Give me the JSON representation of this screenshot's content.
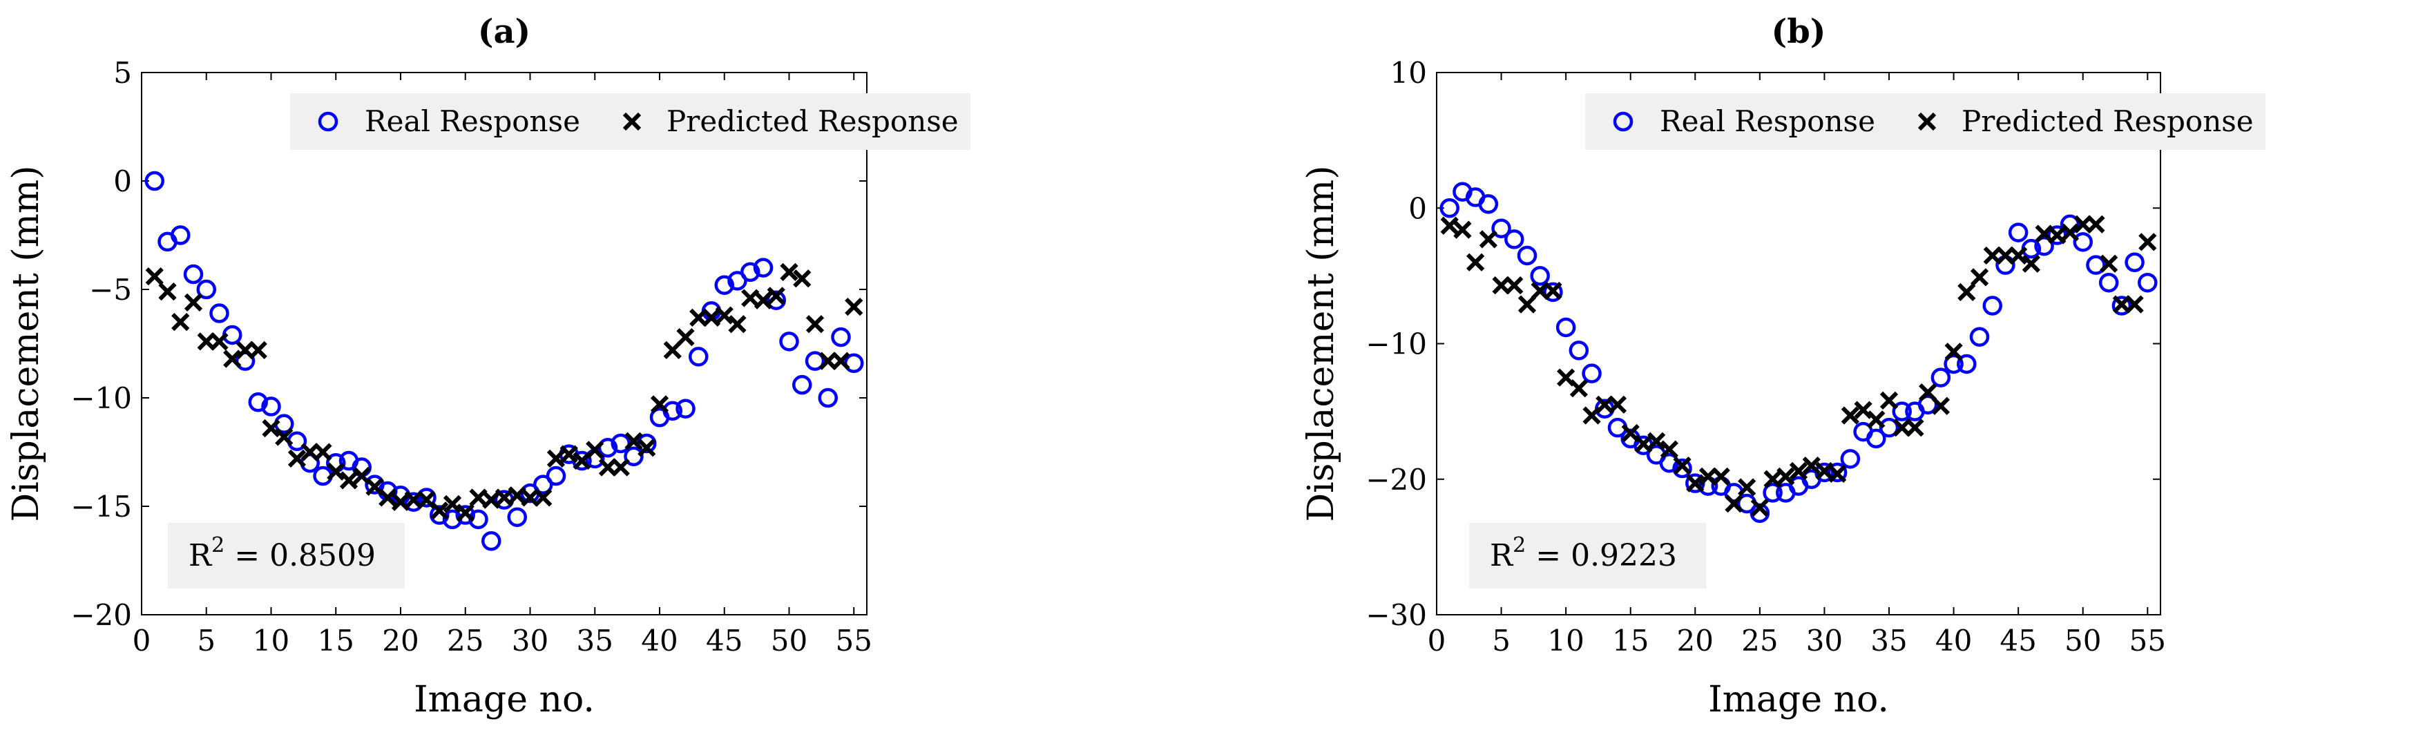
{
  "chart_data": [
    {
      "type": "scatter",
      "title": "(a)",
      "xlabel": "Image no.",
      "ylabel": "Displacement (mm)",
      "xlim": [
        0,
        56
      ],
      "ylim": [
        -20,
        5
      ],
      "xticks": [
        0,
        5,
        10,
        15,
        20,
        25,
        30,
        35,
        40,
        45,
        50,
        55
      ],
      "yticks": [
        5,
        0,
        -5,
        -10,
        -15,
        -20
      ],
      "grid": false,
      "legend": "top-center",
      "annotation": {
        "label": "R",
        "sup": "2",
        "value": " = 0.8509"
      },
      "series": [
        {
          "name": "Real Response",
          "marker": "circle",
          "color": "#0000ff",
          "x": [
            1,
            2,
            3,
            4,
            5,
            6,
            7,
            8,
            9,
            10,
            11,
            12,
            13,
            14,
            15,
            16,
            17,
            18,
            19,
            20,
            21,
            22,
            23,
            24,
            25,
            26,
            27,
            28,
            29,
            30,
            31,
            32,
            33,
            34,
            35,
            36,
            37,
            38,
            39,
            40,
            41,
            42,
            43,
            44,
            45,
            46,
            47,
            48,
            49,
            50,
            51,
            52,
            53,
            54,
            55
          ],
          "values": [
            0,
            -2.8,
            -2.5,
            -4.3,
            -5.0,
            -6.1,
            -7.1,
            -8.3,
            -10.2,
            -10.4,
            -11.2,
            -12.0,
            -13.0,
            -13.6,
            -13.0,
            -12.9,
            -13.2,
            -14.0,
            -14.3,
            -14.5,
            -14.8,
            -14.6,
            -15.4,
            -15.6,
            -15.4,
            -15.6,
            -16.6,
            -14.7,
            -15.5,
            -14.4,
            -14.0,
            -13.6,
            -12.6,
            -12.9,
            -12.8,
            -12.3,
            -12.1,
            -12.7,
            -12.1,
            -10.9,
            -10.6,
            -10.5,
            -8.1,
            -6.0,
            -4.8,
            -4.6,
            -4.2,
            -4.0,
            -5.5,
            -7.4,
            -9.4,
            -8.3,
            -10.0,
            -7.2,
            -8.4
          ]
        },
        {
          "name": "Predicted Response",
          "marker": "x",
          "color": "#000000",
          "x": [
            1,
            2,
            3,
            4,
            5,
            6,
            7,
            8,
            9,
            10,
            11,
            12,
            13,
            14,
            15,
            16,
            17,
            18,
            19,
            20,
            21,
            22,
            23,
            24,
            25,
            26,
            27,
            28,
            29,
            30,
            31,
            32,
            33,
            34,
            35,
            36,
            37,
            38,
            39,
            40,
            41,
            42,
            43,
            44,
            45,
            46,
            47,
            48,
            49,
            50,
            51,
            52,
            53,
            54,
            55
          ],
          "values": [
            -4.4,
            -5.1,
            -6.5,
            -5.6,
            -7.4,
            -7.4,
            -8.2,
            -7.8,
            -7.8,
            -11.4,
            -11.8,
            -12.8,
            -12.5,
            -12.5,
            -13.4,
            -13.8,
            -13.6,
            -14.1,
            -14.6,
            -14.8,
            -14.7,
            -14.7,
            -15.2,
            -14.9,
            -15.3,
            -14.6,
            -14.7,
            -14.6,
            -14.5,
            -14.6,
            -14.6,
            -12.8,
            -12.6,
            -12.9,
            -12.4,
            -13.2,
            -13.2,
            -12.0,
            -12.3,
            -10.3,
            -7.8,
            -7.2,
            -6.3,
            -6.3,
            -6.2,
            -6.6,
            -5.4,
            -5.5,
            -5.3,
            -4.2,
            -4.5,
            -6.6,
            -8.3,
            -8.3,
            -5.8
          ]
        }
      ]
    },
    {
      "type": "scatter",
      "title": "(b)",
      "xlabel": "Image no.",
      "ylabel": "Displacement (mm)",
      "xlim": [
        0,
        56
      ],
      "ylim": [
        -30,
        10
      ],
      "xticks": [
        0,
        5,
        10,
        15,
        20,
        25,
        30,
        35,
        40,
        45,
        50,
        55
      ],
      "yticks": [
        10,
        0,
        -10,
        -20,
        -30
      ],
      "grid": false,
      "legend": "top-center",
      "annotation": {
        "label": "R",
        "sup": "2",
        "value": " = 0.9223"
      },
      "series": [
        {
          "name": "Real Response",
          "marker": "circle",
          "color": "#0000ff",
          "x": [
            1,
            2,
            3,
            4,
            5,
            6,
            7,
            8,
            9,
            10,
            11,
            12,
            13,
            14,
            15,
            16,
            17,
            18,
            19,
            20,
            21,
            22,
            23,
            24,
            25,
            26,
            27,
            28,
            29,
            30,
            31,
            32,
            33,
            34,
            35,
            36,
            37,
            38,
            39,
            40,
            41,
            42,
            43,
            44,
            45,
            46,
            47,
            48,
            49,
            50,
            51,
            52,
            53,
            54,
            55
          ],
          "values": [
            0,
            1.2,
            0.8,
            0.3,
            -1.5,
            -2.3,
            -3.5,
            -5.0,
            -6.2,
            -8.8,
            -10.5,
            -12.2,
            -14.8,
            -16.2,
            -17.0,
            -17.5,
            -18.2,
            -18.8,
            -19.2,
            -20.3,
            -20.5,
            -20.5,
            -21.0,
            -21.8,
            -22.5,
            -21.0,
            -21.0,
            -20.5,
            -20.0,
            -19.5,
            -19.5,
            -18.5,
            -16.5,
            -17.0,
            -16.2,
            -15.0,
            -15.0,
            -14.5,
            -12.5,
            -11.5,
            -11.5,
            -9.5,
            -7.2,
            -4.2,
            -1.8,
            -3.0,
            -2.8,
            -2.0,
            -1.2,
            -2.5,
            -4.2,
            -5.5,
            -7.2,
            -4.0,
            -5.5
          ]
        },
        {
          "name": "Predicted Response",
          "marker": "x",
          "color": "#000000",
          "x": [
            1,
            2,
            3,
            4,
            5,
            6,
            7,
            8,
            9,
            10,
            11,
            12,
            13,
            14,
            15,
            16,
            17,
            18,
            19,
            20,
            21,
            22,
            23,
            24,
            25,
            26,
            27,
            28,
            29,
            30,
            31,
            32,
            33,
            34,
            35,
            36,
            37,
            38,
            39,
            40,
            41,
            42,
            43,
            44,
            45,
            46,
            47,
            48,
            49,
            50,
            51,
            52,
            53,
            54,
            55
          ],
          "values": [
            -1.3,
            -1.6,
            -4.0,
            -2.3,
            -5.7,
            -5.7,
            -7.1,
            -6.1,
            -6.1,
            -12.5,
            -13.3,
            -15.3,
            -14.5,
            -14.5,
            -16.6,
            -17.4,
            -17.2,
            -17.8,
            -19.0,
            -20.3,
            -19.8,
            -19.8,
            -21.8,
            -20.6,
            -22.1,
            -20.0,
            -19.8,
            -19.4,
            -19.0,
            -19.4,
            -19.6,
            -15.3,
            -14.9,
            -15.6,
            -14.2,
            -16.2,
            -16.2,
            -13.6,
            -14.6,
            -10.6,
            -6.2,
            -5.1,
            -3.5,
            -3.5,
            -3.5,
            -4.1,
            -1.9,
            -2.0,
            -1.8,
            -1.2,
            -1.2,
            -4.1,
            -7.1,
            -7.1,
            -2.5
          ]
        }
      ]
    }
  ]
}
